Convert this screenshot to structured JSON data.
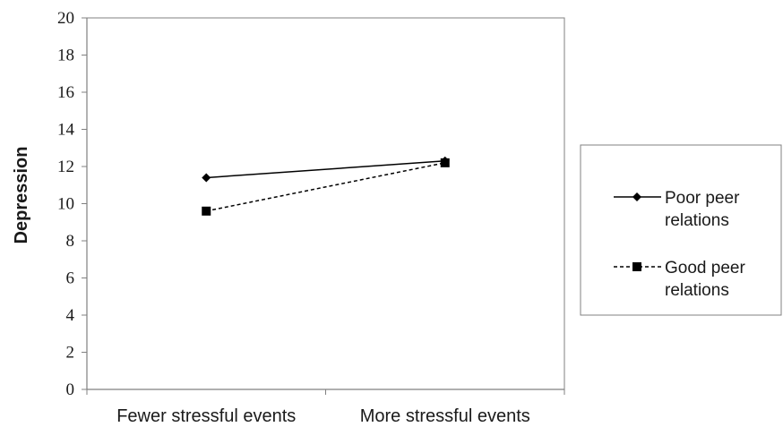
{
  "chart_data": {
    "type": "line",
    "categories": [
      "Fewer stressful events",
      "More stressful events"
    ],
    "series": [
      {
        "name_lines": [
          "Poor peer",
          "relations"
        ],
        "values": [
          11.4,
          12.3
        ],
        "style": "solid",
        "marker": "diamond"
      },
      {
        "name_lines": [
          "Good peer",
          "relations"
        ],
        "values": [
          9.6,
          12.2
        ],
        "style": "dashed",
        "marker": "square"
      }
    ],
    "ylabel": "Depression",
    "xlabel": "",
    "title": "",
    "ylim": [
      0,
      20
    ],
    "yticks": [
      0,
      2,
      4,
      6,
      8,
      10,
      12,
      14,
      16,
      18,
      20
    ],
    "grid": false,
    "legend_position": "right",
    "colors": {
      "line": "#000000",
      "axis": "#808080",
      "plot_border": "#808080",
      "legend_border": "#808080"
    }
  }
}
